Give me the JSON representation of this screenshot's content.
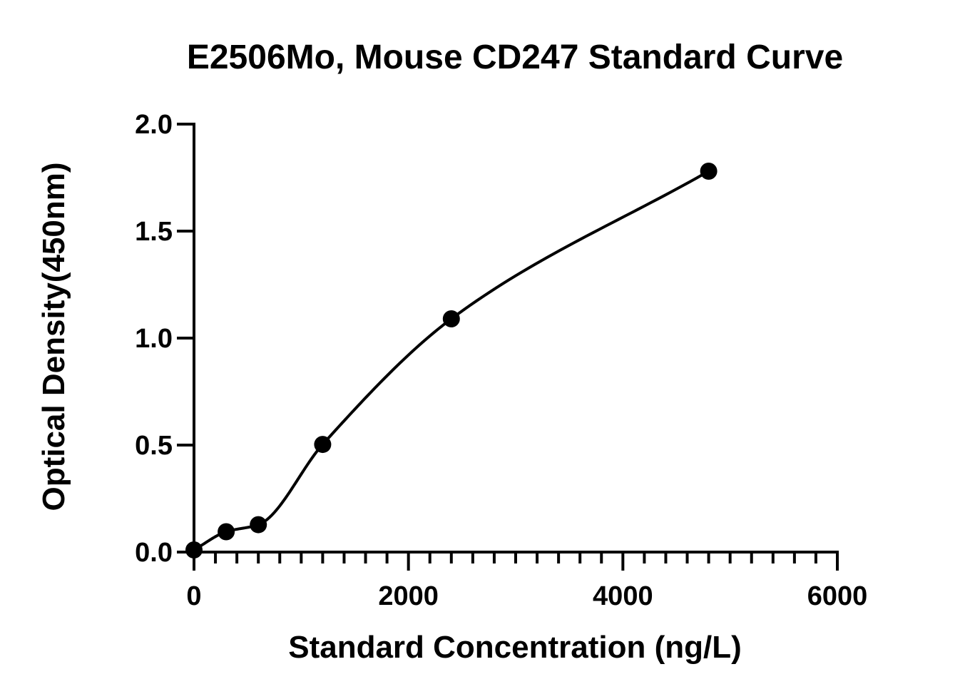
{
  "chart_data": {
    "type": "scatter",
    "title": "E2506Mo, Mouse CD247 Standard Curve",
    "xlabel": "Standard Concentration (ng/L)",
    "ylabel": "Optical Density(450nm)",
    "xlim": [
      0,
      6000
    ],
    "ylim": [
      0,
      2.0
    ],
    "x_ticks": [
      "0",
      "2000",
      "4000",
      "6000"
    ],
    "y_ticks": [
      "0.0",
      "0.5",
      "1.0",
      "1.5",
      "2.0"
    ],
    "x_minor_step": 200,
    "y_major_step": 0.5,
    "grid": false,
    "legend": "none",
    "fit": "four-parameter logistic curve",
    "colors": {
      "points": "#000000",
      "curve": "#000000",
      "axes": "#000000"
    },
    "series": [
      {
        "points": [
          {
            "x": 0,
            "y": 0.01
          },
          {
            "x": 300,
            "y": 0.095
          },
          {
            "x": 600,
            "y": 0.128
          },
          {
            "x": 1200,
            "y": 0.503
          },
          {
            "x": 2400,
            "y": 1.09
          },
          {
            "x": 4800,
            "y": 1.78
          }
        ]
      }
    ]
  }
}
